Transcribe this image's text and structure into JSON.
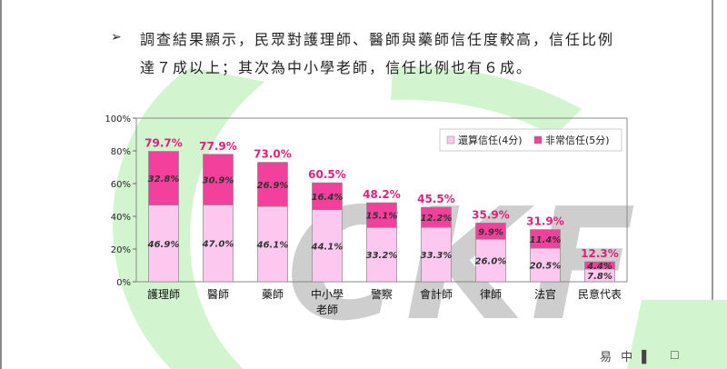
{
  "text": {
    "line1": "調查結果顯示，民眾對護理師、醫師與藥師信任度較高，信任比例",
    "line2": "達７成以上；其次為中小學老師，信任比例也有６成。",
    "bullet": "➢",
    "watermark": "CKF",
    "stamp": "易 中 ▌"
  },
  "colors": {
    "light_series": "#fcc8f0",
    "dark_series": "#f2409c",
    "total_label": "#e0207c",
    "watermark": "#c5c5c5",
    "swoosh": "#d2f5cf"
  },
  "chart_data": {
    "type": "bar",
    "stacked": true,
    "categories": [
      "護理師",
      "醫師",
      "藥師",
      "中小學\n老師",
      "警察",
      "會計師",
      "律師",
      "法官",
      "民意代表"
    ],
    "series": [
      {
        "name": "還算信任(4分)",
        "values": [
          46.9,
          47.0,
          46.1,
          44.1,
          33.2,
          33.3,
          26.0,
          20.5,
          7.8
        ],
        "labels": [
          "46.9%",
          "47.0%",
          "46.1%",
          "44.1%",
          "33.2%",
          "33.3%",
          "26.0%",
          "20.5%",
          "7.8%"
        ]
      },
      {
        "name": "非常信任(5分)",
        "values": [
          32.8,
          30.9,
          26.9,
          16.4,
          15.1,
          12.2,
          9.9,
          11.4,
          4.4
        ],
        "labels": [
          "32.8%",
          "30.9%",
          "26.9%",
          "16.4%",
          "15.1%",
          "12.2%",
          "9.9%",
          "11.4%",
          "4.4%"
        ]
      }
    ],
    "totals": [
      79.7,
      77.9,
      73.0,
      60.5,
      48.2,
      45.5,
      35.9,
      31.9,
      12.3
    ],
    "total_labels": [
      "79.7%",
      "77.9%",
      "73.0%",
      "60.5%",
      "48.2%",
      "45.5%",
      "35.9%",
      "31.9%",
      "12.3%"
    ],
    "yticks": [
      "100%",
      "80%",
      "60%",
      "40%",
      "20%",
      "0%"
    ],
    "ylim": [
      0,
      100
    ],
    "legend_position": "top-right",
    "grid": false
  }
}
